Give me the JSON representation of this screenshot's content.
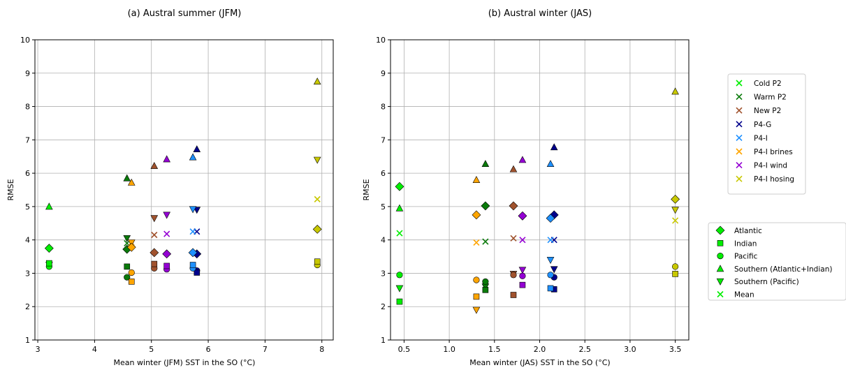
{
  "series_colors": {
    "Cold P2": "#00ee00",
    "Warm P2": "#0a7a0a",
    "New P2": "#a0522d",
    "P4-G": "#00008b",
    "P4-I": "#1e90ff",
    "P4-I brines": "#ffa500",
    "P4-I wind": "#9400d3",
    "P4-I hosing": "#c8c800"
  },
  "marker_legend": [
    {
      "label": "Atlantic",
      "marker": "diamond"
    },
    {
      "label": "Indian",
      "marker": "square"
    },
    {
      "label": "Pacific",
      "marker": "circle"
    },
    {
      "label": "Southern (Atlantic+Indian)",
      "marker": "triangle-up"
    },
    {
      "label": "Southern (Pacific)",
      "marker": "triangle-down"
    },
    {
      "label": "Mean",
      "marker": "x"
    }
  ],
  "chart_data": [
    {
      "type": "scatter",
      "title": "(a) Austral summer (JFM)",
      "xlabel": "Mean winter (JFM) SST in the SO (°C)",
      "ylabel": "RMSE",
      "xlim": [
        2.95,
        8.2
      ],
      "ylim": [
        1,
        10
      ],
      "xticks": [
        3,
        4,
        5,
        6,
        7,
        8
      ],
      "yticks": [
        1,
        2,
        3,
        4,
        5,
        6,
        7,
        8,
        9,
        10
      ],
      "grid": true,
      "series": [
        {
          "name": "Cold P2",
          "x": 3.2,
          "Atlantic": 3.75,
          "Indian": 3.3,
          "Pacific": 3.2,
          "Southern (Atlantic+Indian)": 5.0,
          "Southern (Pacific)": 3.25,
          "Mean": 3.3
        },
        {
          "name": "Warm P2",
          "x": 4.57,
          "Atlantic": 3.72,
          "Indian": 3.2,
          "Pacific": 2.88,
          "Southern (Atlantic+Indian)": 5.85,
          "Southern (Pacific)": 4.05,
          "Mean": 3.9
        },
        {
          "name": "New P2",
          "x": 5.05,
          "Atlantic": 3.62,
          "Indian": 3.28,
          "Pacific": 3.15,
          "Southern (Atlantic+Indian)": 6.22,
          "Southern (Pacific)": 4.65,
          "Mean": 4.15
        },
        {
          "name": "P4-G",
          "x": 5.8,
          "Atlantic": 3.58,
          "Indian": 3.02,
          "Pacific": 3.08,
          "Southern (Atlantic+Indian)": 6.72,
          "Southern (Pacific)": 4.9,
          "Mean": 4.25
        },
        {
          "name": "P4-I",
          "x": 5.73,
          "Atlantic": 3.62,
          "Indian": 3.25,
          "Pacific": 3.15,
          "Southern (Atlantic+Indian)": 6.48,
          "Southern (Pacific)": 4.92,
          "Mean": 4.25
        },
        {
          "name": "P4-I brines",
          "x": 4.65,
          "Atlantic": 3.78,
          "Indian": 2.75,
          "Pacific": 3.02,
          "Southern (Atlantic+Indian)": 5.72,
          "Southern (Pacific)": 3.92,
          "Mean": 3.92
        },
        {
          "name": "P4-I wind",
          "x": 5.27,
          "Atlantic": 3.58,
          "Indian": 3.22,
          "Pacific": 3.12,
          "Southern (Atlantic+Indian)": 6.42,
          "Southern (Pacific)": 4.75,
          "Mean": 4.18
        },
        {
          "name": "P4-I hosing",
          "x": 7.92,
          "Atlantic": 4.32,
          "Indian": 3.35,
          "Pacific": 3.25,
          "Southern (Atlantic+Indian)": 8.75,
          "Southern (Pacific)": 6.4,
          "Mean": 5.22
        }
      ]
    },
    {
      "type": "scatter",
      "title": "(b) Austral winter (JAS)",
      "xlabel": "Mean winter (JAS) SST in the SO (°C)",
      "ylabel": "RMSE",
      "xlim": [
        0.35,
        3.65
      ],
      "ylim": [
        1,
        10
      ],
      "xticks": [
        0.5,
        1.0,
        1.5,
        2.0,
        2.5,
        3.0,
        3.5
      ],
      "yticks": [
        1,
        2,
        3,
        4,
        5,
        6,
        7,
        8,
        9,
        10
      ],
      "grid": true,
      "series": [
        {
          "name": "Cold P2",
          "x": 0.45,
          "Atlantic": 5.6,
          "Indian": 2.15,
          "Pacific": 2.95,
          "Southern (Atlantic+Indian)": 4.95,
          "Southern (Pacific)": 2.55,
          "Mean": 4.2
        },
        {
          "name": "Warm P2",
          "x": 1.4,
          "Atlantic": 5.02,
          "Indian": 2.5,
          "Pacific": 2.75,
          "Southern (Atlantic+Indian)": 6.28,
          "Southern (Pacific)": 2.6,
          "Mean": 3.95
        },
        {
          "name": "New P2",
          "x": 1.71,
          "Atlantic": 5.02,
          "Indian": 2.35,
          "Pacific": 2.95,
          "Southern (Atlantic+Indian)": 6.12,
          "Southern (Pacific)": 2.98,
          "Mean": 4.05
        },
        {
          "name": "P4-G",
          "x": 2.16,
          "Atlantic": 4.75,
          "Indian": 2.52,
          "Pacific": 2.88,
          "Southern (Atlantic+Indian)": 6.78,
          "Southern (Pacific)": 3.12,
          "Mean": 4.0
        },
        {
          "name": "P4-I",
          "x": 2.12,
          "Atlantic": 4.65,
          "Indian": 2.55,
          "Pacific": 2.95,
          "Southern (Atlantic+Indian)": 6.28,
          "Southern (Pacific)": 3.4,
          "Mean": 4.0
        },
        {
          "name": "P4-I brines",
          "x": 1.3,
          "Atlantic": 4.75,
          "Indian": 2.3,
          "Pacific": 2.8,
          "Southern (Atlantic+Indian)": 5.8,
          "Southern (Pacific)": 1.9,
          "Mean": 3.92
        },
        {
          "name": "P4-I wind",
          "x": 1.81,
          "Atlantic": 4.72,
          "Indian": 2.65,
          "Pacific": 2.92,
          "Southern (Atlantic+Indian)": 6.4,
          "Southern (Pacific)": 3.1,
          "Mean": 4.0
        },
        {
          "name": "P4-I hosing",
          "x": 3.5,
          "Atlantic": 5.22,
          "Indian": 2.98,
          "Pacific": 3.2,
          "Southern (Atlantic+Indian)": 8.45,
          "Southern (Pacific)": 4.9,
          "Mean": 4.58
        }
      ]
    }
  ]
}
